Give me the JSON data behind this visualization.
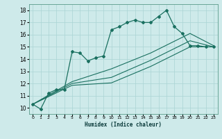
{
  "title": "",
  "xlabel": "Humidex (Indice chaleur)",
  "bg_color": "#ceeaea",
  "grid_color": "#aad4d4",
  "line_color": "#1a7060",
  "xlim": [
    -0.5,
    23.5
  ],
  "ylim": [
    9.5,
    18.5
  ],
  "xticks": [
    0,
    1,
    2,
    3,
    4,
    5,
    6,
    7,
    8,
    9,
    10,
    11,
    12,
    13,
    14,
    15,
    16,
    17,
    18,
    19,
    20,
    21,
    22,
    23
  ],
  "yticks": [
    10,
    11,
    12,
    13,
    14,
    15,
    16,
    17,
    18
  ],
  "main_x": [
    0,
    1,
    2,
    3,
    4,
    5,
    6,
    7,
    8,
    9,
    10,
    11,
    12,
    13,
    14,
    15,
    16,
    17,
    18,
    19,
    20,
    21,
    22,
    23
  ],
  "main_y": [
    10.3,
    9.9,
    11.2,
    11.5,
    11.5,
    14.6,
    14.5,
    13.85,
    14.1,
    14.25,
    16.4,
    16.65,
    17.0,
    17.2,
    17.0,
    17.0,
    17.5,
    18.0,
    16.65,
    16.1,
    15.1,
    15.1,
    15.0,
    15.0
  ],
  "line_low_x": [
    0,
    5,
    10,
    15,
    20,
    23
  ],
  "line_low_y": [
    10.3,
    11.85,
    12.05,
    13.4,
    15.0,
    15.0
  ],
  "line_mid_x": [
    0,
    5,
    10,
    15,
    20,
    23
  ],
  "line_mid_y": [
    10.3,
    12.0,
    12.5,
    13.9,
    15.5,
    15.0
  ],
  "line_high_x": [
    0,
    5,
    10,
    15,
    20,
    23
  ],
  "line_high_y": [
    10.3,
    12.15,
    13.2,
    14.5,
    16.1,
    15.1
  ]
}
